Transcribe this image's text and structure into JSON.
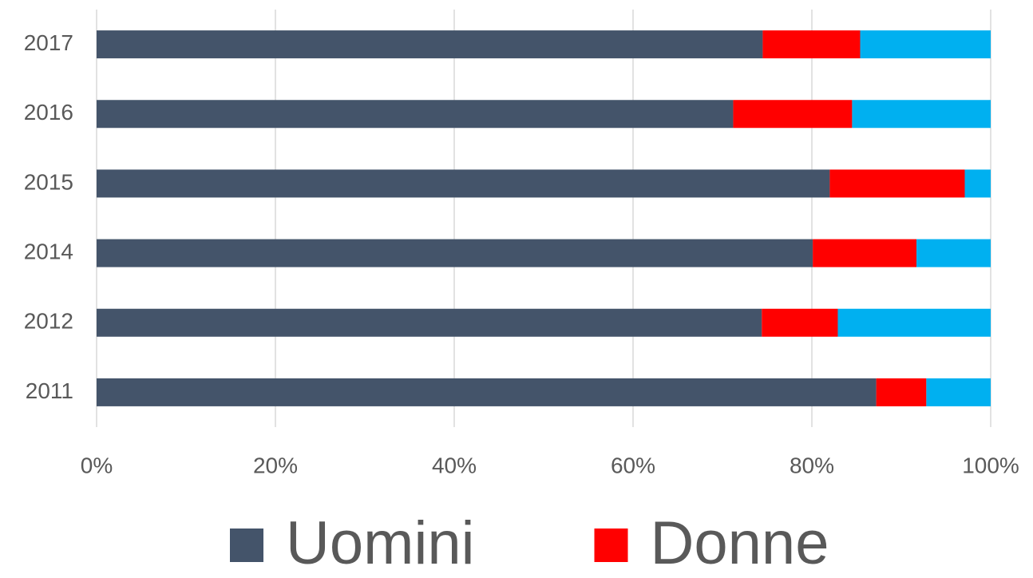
{
  "chart_data": {
    "type": "stacked_bar_horizontal",
    "categories": [
      "2011",
      "2012",
      "2014",
      "2015",
      "2016",
      "2017"
    ],
    "series": [
      {
        "name": "Uomini",
        "color": "#44546a",
        "values": [
          87.2,
          74.4,
          80.1,
          82.0,
          71.2,
          74.5
        ]
      },
      {
        "name": "Donne",
        "color": "#ff0000",
        "values": [
          5.6,
          8.5,
          11.6,
          15.1,
          13.3,
          10.9
        ]
      },
      {
        "color": "#00b0f0",
        "values": [
          7.2,
          17.1,
          8.3,
          2.9,
          15.5,
          14.6
        ]
      }
    ],
    "xlim": [
      0,
      100
    ],
    "xticks": [
      {
        "value": 0,
        "label": "0%"
      },
      {
        "value": 20,
        "label": "20%"
      },
      {
        "value": 40,
        "label": "40%"
      },
      {
        "value": 60,
        "label": "60%"
      },
      {
        "value": 80,
        "label": "80%"
      },
      {
        "value": 100,
        "label": "100%"
      }
    ],
    "grid": true,
    "legend": "bottom"
  }
}
